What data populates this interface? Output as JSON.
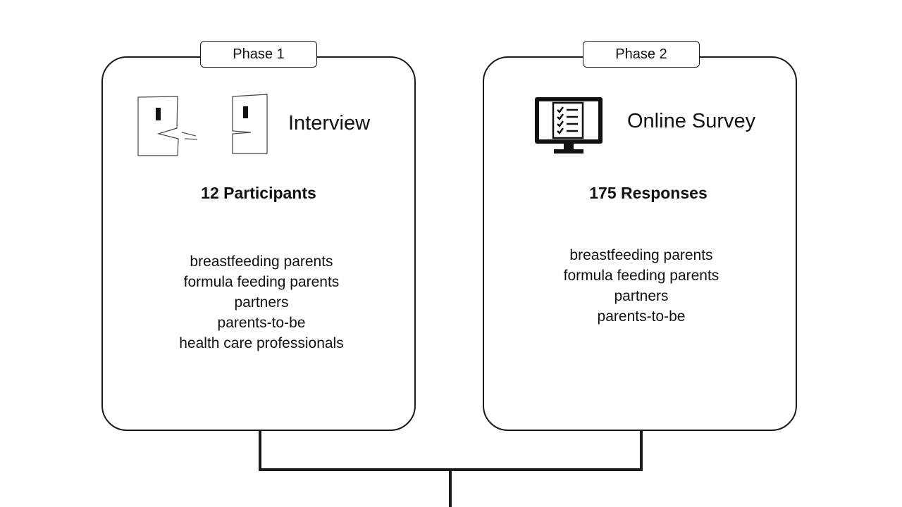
{
  "phases": [
    {
      "tab_label": "Phase 1",
      "method": "Interview",
      "method_icon": "interview-icon",
      "count": "12 Participants",
      "groups": [
        "breastfeeding parents",
        "formula feeding parents",
        "partners",
        "parents-to-be",
        "health care professionals"
      ]
    },
    {
      "tab_label": "Phase 2",
      "method": "Online Survey",
      "method_icon": "survey-monitor-icon",
      "count": "175 Responses",
      "groups": [
        "breastfeeding parents",
        "formula feeding parents",
        "partners",
        "parents-to-be"
      ]
    }
  ],
  "colors": {
    "stroke": "#1a1a1a",
    "background": "#ffffff"
  }
}
